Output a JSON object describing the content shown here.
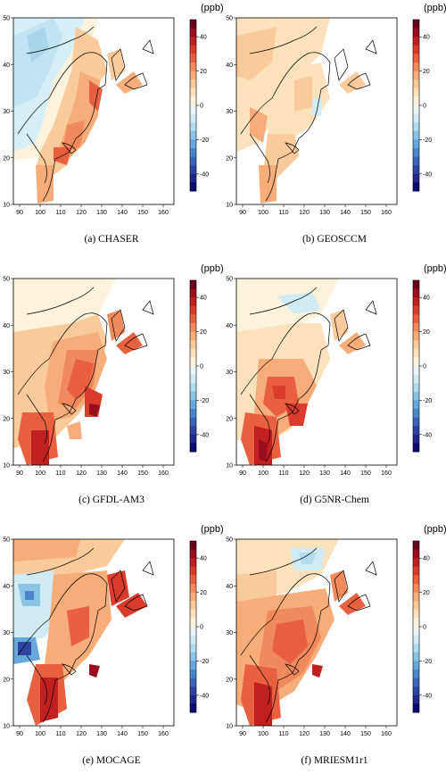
{
  "colorbar": {
    "unit": "(ppb)",
    "ticks": [
      "40",
      "20",
      "0",
      "-20",
      "-40"
    ],
    "range": [
      -50,
      50
    ],
    "colors_high_to_low": [
      "#67001f",
      "#9a0d1c",
      "#c0201f",
      "#d93c2c",
      "#e8603f",
      "#f08a5c",
      "#f6ad79",
      "#f9cb9a",
      "#fbe2bd",
      "#fdf2dc",
      "#eaf5f8",
      "#d0ebf3",
      "#b1dcee",
      "#8ac4e5",
      "#66a8da",
      "#4b86cb",
      "#3a64b8",
      "#2e44a2",
      "#21278a",
      "#0b0b6e"
    ]
  },
  "map": {
    "lon_ticks": [
      "90",
      "100",
      "110",
      "120",
      "130",
      "140",
      "150",
      "160"
    ],
    "lat_ticks": [
      "50",
      "40",
      "30",
      "20",
      "10"
    ]
  },
  "panels": [
    {
      "caption": "(a) CHASER"
    },
    {
      "caption": "(b) GEOSCCM"
    },
    {
      "caption": "(c) GFDL-AM3"
    },
    {
      "caption": "(d) G5NR-Chem"
    },
    {
      "caption": "(e) MOCAGE"
    },
    {
      "caption": "(f) MRIESM1r1"
    }
  ]
}
